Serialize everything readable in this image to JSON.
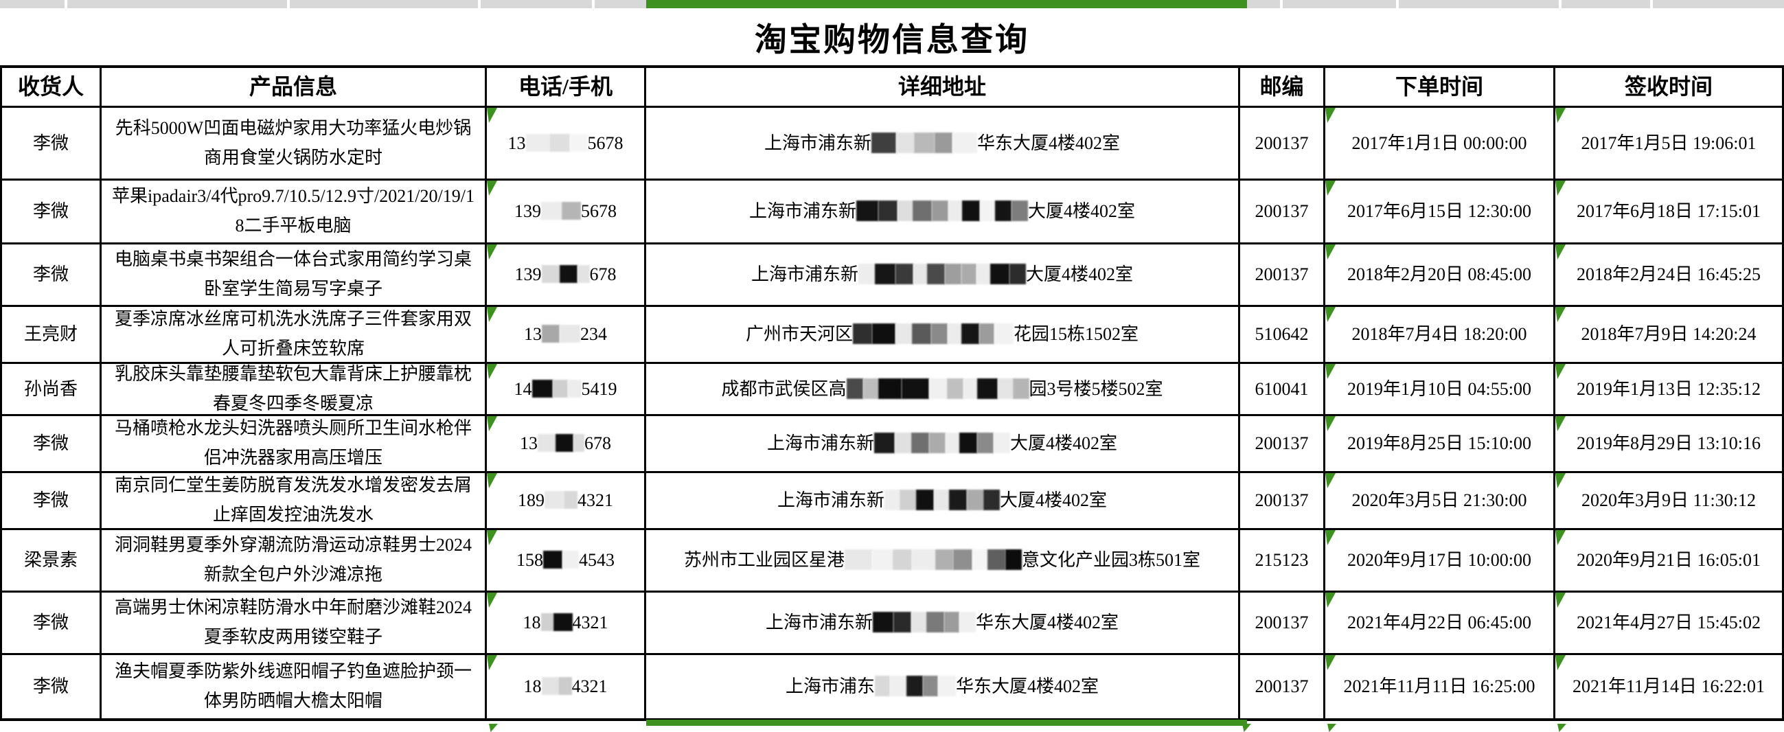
{
  "title": "淘宝购物信息查询",
  "columns": [
    "收货人",
    "产品信息",
    "电话/手机",
    "详细地址",
    "邮编",
    "下单时间",
    "签收时间"
  ],
  "accent": {
    "green": "#3c911f",
    "strip_gray": "#d8d8d8",
    "border": "#000000"
  },
  "rows": [
    {
      "recipient": "李微",
      "product": "先科5000W凹面电磁炉家用大功率猛火电炒锅商用食堂火锅防水定时",
      "phone_prefix": "13",
      "phone_suffix": "5678",
      "phone_blocks": [
        [
          "#ededed",
          34
        ],
        [
          "#dfdfdf",
          30
        ],
        [
          "#f5f5f5",
          26
        ]
      ],
      "addr_prefix": "上海市浦东新",
      "addr_suffix": "华东大厦4楼402室",
      "addr_blocks": [
        [
          "#3f3f3f",
          36
        ],
        [
          "#e3e3e3",
          26
        ],
        [
          "#b9b9b9",
          30
        ],
        [
          "#9a9a9a",
          26
        ],
        [
          "#f1f1f1",
          36
        ]
      ],
      "zip": "200137",
      "order_time": "2017年1月1日 00:00:00",
      "receive_time": "2017年1月5日 19:06:01"
    },
    {
      "recipient": "李微",
      "product": "苹果ipadair3/4代pro9.7/10.5/12.9寸/2021/20/19/18二手平板电脑",
      "phone_prefix": "139",
      "phone_suffix": "5678",
      "phone_blocks": [
        [
          "#ececec",
          30
        ],
        [
          "#b5b5b5",
          28
        ]
      ],
      "addr_prefix": "上海市浦东新",
      "addr_suffix": "大厦4楼402室",
      "addr_blocks": [
        [
          "#141414",
          32
        ],
        [
          "#2f2f2f",
          28
        ],
        [
          "#dedede",
          22
        ],
        [
          "#6f6f6f",
          28
        ],
        [
          "#9a9a9a",
          24
        ],
        [
          "#ececec",
          20
        ],
        [
          "#101010",
          26
        ],
        [
          "#f3f3f3",
          22
        ],
        [
          "#141414",
          24
        ],
        [
          "#7d7d7d",
          24
        ]
      ],
      "zip": "200137",
      "order_time": "2017年6月15日 12:30:00",
      "receive_time": "2017年6月18日 17:15:01"
    },
    {
      "recipient": "李微",
      "product": "电脑桌书桌书架组合一体台式家用简约学习桌卧室学生简易写字桌子",
      "phone_prefix": "139",
      "phone_suffix": "678",
      "phone_blocks": [
        [
          "#d9d9d9",
          26
        ],
        [
          "#111111",
          26
        ],
        [
          "#e3e3e3",
          18
        ]
      ],
      "addr_prefix": "上海市浦东新",
      "addr_suffix": "大厦4楼402室",
      "addr_blocks": [
        [
          "#ededed",
          24
        ],
        [
          "#161616",
          30
        ],
        [
          "#3a3a3a",
          26
        ],
        [
          "#e7e7e7",
          20
        ],
        [
          "#4a4a4a",
          26
        ],
        [
          "#9e9e9e",
          24
        ],
        [
          "#ababab",
          22
        ],
        [
          "#ececec",
          20
        ],
        [
          "#101010",
          28
        ],
        [
          "#2c2c2c",
          24
        ]
      ],
      "zip": "200137",
      "order_time": "2018年2月20日 08:45:00",
      "receive_time": "2018年2月24日 16:45:25"
    },
    {
      "recipient": "王亮财",
      "product": "夏季凉席冰丝席可机洗水洗席子三件套家用双人可折叠床笠软席",
      "phone_prefix": "13",
      "phone_suffix": "234",
      "phone_blocks": [
        [
          "#a8a8a8",
          26
        ],
        [
          "#e8e8e8",
          30
        ]
      ],
      "addr_prefix": "广州市天河区",
      "addr_suffix": "花园15栋1502室",
      "addr_blocks": [
        [
          "#2f2f2f",
          28
        ],
        [
          "#0f0f0f",
          34
        ],
        [
          "#e8e8e8",
          24
        ],
        [
          "#5a5a5a",
          28
        ],
        [
          "#8a8a8a",
          24
        ],
        [
          "#ececec",
          20
        ],
        [
          "#161616",
          26
        ],
        [
          "#9c9c9c",
          22
        ],
        [
          "#f2f2f2",
          28
        ]
      ],
      "zip": "510642",
      "order_time": "2018年7月4日 18:20:00",
      "receive_time": "2018年7月9日 14:20:24"
    },
    {
      "recipient": "孙尚香",
      "product": "乳胶床头靠垫腰靠垫软包大靠背床上护腰靠枕春夏冬四季冬暖夏凉",
      "phone_prefix": "14",
      "phone_suffix": "5419",
      "phone_blocks": [
        [
          "#0f0f0f",
          30
        ],
        [
          "#cfcfcf",
          22
        ],
        [
          "#ededed",
          20
        ]
      ],
      "addr_prefix": "成都市武侯区高",
      "addr_suffix": "园3号楼5楼502室",
      "addr_blocks": [
        [
          "#4a4a4a",
          24
        ],
        [
          "#bdbdbd",
          22
        ],
        [
          "#0d0d0d",
          34
        ],
        [
          "#111111",
          40
        ],
        [
          "#f0f0f0",
          26
        ],
        [
          "#c0c0c0",
          24
        ],
        [
          "#ededed",
          20
        ],
        [
          "#121212",
          30
        ],
        [
          "#e5e5e5",
          22
        ],
        [
          "#b5b5b5",
          24
        ]
      ],
      "zip": "610041",
      "order_time": "2019年1月10日 04:55:00",
      "receive_time": "2019年1月13日 12:35:12"
    },
    {
      "recipient": "李微",
      "product": "马桶喷枪水龙头妇洗器喷头厕所卫生间水枪伴侣冲洗器家用高压增压",
      "phone_prefix": "13",
      "phone_suffix": "678",
      "phone_blocks": [
        [
          "#e5e5e5",
          26
        ],
        [
          "#0f0f0f",
          26
        ],
        [
          "#dcdcdc",
          16
        ]
      ],
      "addr_prefix": "上海市浦东新",
      "addr_suffix": "大厦4楼402室",
      "addr_blocks": [
        [
          "#1c1c1c",
          30
        ],
        [
          "#e0e0e0",
          24
        ],
        [
          "#6f6f6f",
          26
        ],
        [
          "#ababab",
          24
        ],
        [
          "#ededed",
          20
        ],
        [
          "#101010",
          26
        ],
        [
          "#8a8a8a",
          24
        ],
        [
          "#f0f0f0",
          24
        ]
      ],
      "zip": "200137",
      "order_time": "2019年8月25日 15:10:00",
      "receive_time": "2019年8月29日 13:10:16"
    },
    {
      "recipient": "李微",
      "product": "南京同仁堂生姜防脱育发洗发水增发密发去屑止痒固发控油洗发水",
      "phone_prefix": "189",
      "phone_suffix": "4321",
      "phone_blocks": [
        [
          "#e8e8e8",
          28
        ],
        [
          "#d8d8d8",
          20
        ]
      ],
      "addr_prefix": "上海市浦东新",
      "addr_suffix": "大厦4楼402室",
      "addr_blocks": [
        [
          "#eeeeee",
          22
        ],
        [
          "#d0d0d0",
          24
        ],
        [
          "#101010",
          26
        ],
        [
          "#e8e8e8",
          22
        ],
        [
          "#1a1a1a",
          26
        ],
        [
          "#ababab",
          24
        ],
        [
          "#2c2c2c",
          24
        ]
      ],
      "zip": "200137",
      "order_time": "2020年3月5日 21:30:00",
      "receive_time": "2020年3月9日 11:30:12"
    },
    {
      "recipient": "梁景素",
      "product": "洞洞鞋男夏季外穿潮流防滑运动凉鞋男士2024新款全包户外沙滩凉拖",
      "phone_prefix": "158",
      "phone_suffix": "4543",
      "phone_blocks": [
        [
          "#0d0d0d",
          28
        ],
        [
          "#f0f0f0",
          24
        ]
      ],
      "addr_prefix": "苏州市工业园区星港",
      "addr_suffix": "意文化产业园3栋501室",
      "addr_blocks": [
        [
          "#e8e8e8",
          40
        ],
        [
          "#f2f2f2",
          30
        ],
        [
          "#d5d5d5",
          28
        ],
        [
          "#ededed",
          34
        ],
        [
          "#b0b0b0",
          26
        ],
        [
          "#8f8f8f",
          28
        ],
        [
          "#f5f5f5",
          22
        ],
        [
          "#5f5f5f",
          26
        ],
        [
          "#0c0c0c",
          24
        ]
      ],
      "zip": "215123",
      "order_time": "2020年9月17日 10:00:00",
      "receive_time": "2020年9月21日 16:05:01"
    },
    {
      "recipient": "李微",
      "product": "高端男士休闲凉鞋防滑水中年耐磨沙滩鞋2024夏季软皮两用镂空鞋子",
      "phone_prefix": "18",
      "phone_suffix": "4321",
      "phone_blocks": [
        [
          "#d0d0d0",
          18
        ],
        [
          "#0f0f0f",
          28
        ]
      ],
      "addr_prefix": "上海市浦东新",
      "addr_suffix": "华东大厦4楼402室",
      "addr_blocks": [
        [
          "#111111",
          30
        ],
        [
          "#2a2a2a",
          26
        ],
        [
          "#e5e5e5",
          22
        ],
        [
          "#7a7a7a",
          26
        ],
        [
          "#9c9c9c",
          22
        ],
        [
          "#f0f0f0",
          24
        ]
      ],
      "zip": "200137",
      "order_time": "2021年4月22日 06:45:00",
      "receive_time": "2021年4月27日 15:45:02"
    },
    {
      "recipient": "李微",
      "product": "渔夫帽夏季防紫外线遮阳帽子钓鱼遮脸护颈一体男防晒帽大檐太阳帽",
      "phone_prefix": "18",
      "phone_suffix": "4321",
      "phone_blocks": [
        [
          "#e3e3e3",
          24
        ],
        [
          "#cccccc",
          20
        ]
      ],
      "addr_prefix": "上海市浦东",
      "addr_suffix": "华东大厦4楼402室",
      "addr_blocks": [
        [
          "#d9d9d9",
          22
        ],
        [
          "#efefef",
          24
        ],
        [
          "#1c1c1c",
          24
        ],
        [
          "#8a8a8a",
          22
        ],
        [
          "#f2f2f2",
          26
        ]
      ],
      "zip": "200137",
      "order_time": "2021年11月11日 16:25:00",
      "receive_time": "2021年11月14日 16:22:01"
    }
  ]
}
